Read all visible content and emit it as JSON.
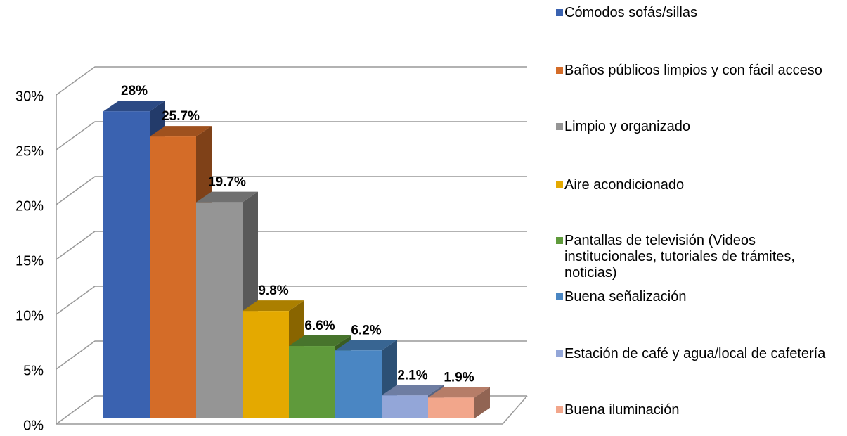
{
  "chart_data": {
    "type": "bar3d",
    "series": [
      {
        "name": "Cómodos sofás/sillas",
        "color": "#3a62b0",
        "values": [
          28
        ],
        "value_labels": [
          "28%"
        ]
      },
      {
        "name": "Baños públicos limpios y con fácil acceso",
        "color": "#d46c28",
        "values": [
          25.7
        ],
        "value_labels": [
          "25.7%"
        ]
      },
      {
        "name": "Limpio y organizado",
        "color": "#959595",
        "values": [
          19.7
        ],
        "value_labels": [
          "19.7%"
        ]
      },
      {
        "name": "Aire acondicionado",
        "color": "#e4a900",
        "values": [
          9.8
        ],
        "value_labels": [
          "9.8%"
        ]
      },
      {
        "name": "Pantallas de televisión (Videos institucionales, tutoriales de trámites, noticias)",
        "color": "#5f9a3b",
        "values": [
          6.6
        ],
        "value_labels": [
          "6.6%"
        ]
      },
      {
        "name": "Buena señalización",
        "color": "#4a86c3",
        "values": [
          6.2
        ],
        "value_labels": [
          "6.2%"
        ]
      },
      {
        "name": "Estación de café y agua/local de cafetería",
        "color": "#93a6d8",
        "values": [
          2.1
        ],
        "value_labels": [
          "2.1%"
        ]
      },
      {
        "name": "Buena iluminación",
        "color": "#f2a68b",
        "values": [
          1.9
        ],
        "value_labels": [
          "1.9%"
        ]
      }
    ],
    "ylim": [
      0,
      30
    ],
    "yticks": [
      {
        "value": 0,
        "label": "0%"
      },
      {
        "value": 5,
        "label": "5%"
      },
      {
        "value": 10,
        "label": "10%"
      },
      {
        "value": 15,
        "label": "15%"
      },
      {
        "value": 20,
        "label": "20%"
      },
      {
        "value": 25,
        "label": "25%"
      },
      {
        "value": 30,
        "label": "30%"
      }
    ],
    "grid": true,
    "legend": "right"
  }
}
